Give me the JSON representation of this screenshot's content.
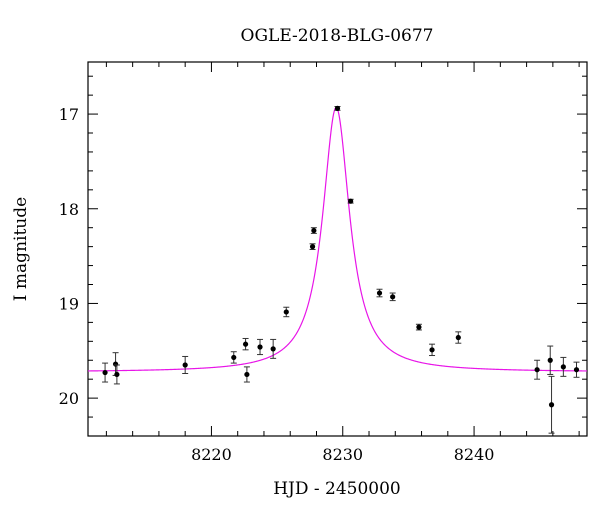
{
  "chart_data": {
    "type": "scatter",
    "title": "OGLE-2018-BLG-0677",
    "xlabel": "HJD - 2450000",
    "ylabel": "I magnitude",
    "xlim": [
      8210.6,
      8248.6
    ],
    "ylim": [
      20.4,
      16.45
    ],
    "y_inverted": true,
    "x_ticks": [
      8220,
      8230,
      8240
    ],
    "x_tick_labels": [
      "8220",
      "8230",
      "8240"
    ],
    "y_ticks": [
      17,
      18,
      19,
      20
    ],
    "y_tick_labels": [
      "17",
      "18",
      "19",
      "20"
    ],
    "grid": false,
    "series": [
      {
        "kind": "points",
        "color": "#000000",
        "x": [
          8211.9,
          8212.7,
          8212.8,
          8218.0,
          8221.7,
          8222.6,
          8222.7,
          8223.7,
          8224.7,
          8225.7,
          8227.7,
          8227.8,
          8229.6,
          8230.6,
          8232.8,
          8233.8,
          8235.8,
          8236.8,
          8238.8,
          8244.8,
          8245.8,
          8245.9,
          8246.8,
          8247.8
        ],
        "y": [
          19.73,
          19.64,
          19.75,
          19.65,
          19.57,
          19.43,
          19.75,
          19.46,
          19.48,
          19.09,
          18.4,
          18.23,
          16.94,
          17.92,
          18.89,
          18.93,
          19.25,
          19.49,
          19.36,
          19.7,
          19.6,
          20.07,
          19.67,
          19.7
        ],
        "yerr": [
          0.1,
          0.12,
          0.1,
          0.09,
          0.06,
          0.06,
          0.08,
          0.08,
          0.1,
          0.05,
          0.03,
          0.03,
          0.02,
          0.02,
          0.04,
          0.04,
          0.03,
          0.06,
          0.06,
          0.1,
          0.15,
          0.3,
          0.1,
          0.08
        ]
      },
      {
        "kind": "model",
        "color": "#e815e8",
        "peak_time": 8229.5,
        "baseline_mag": 19.725,
        "peak_mag": 16.93,
        "curve_samples": {
          "x": [
            8210.6,
            8212.6,
            8214.6,
            8216.6,
            8218.6,
            8220.6,
            8222.6,
            8223.6,
            8224.6,
            8225.6,
            8226.5,
            8227.5,
            8228.0,
            8228.5,
            8229.0,
            8229.5,
            8230.0,
            8230.5,
            8231.0,
            8231.5,
            8232.5,
            8233.4,
            8234.4,
            8235.4,
            8236.4,
            8238.4,
            8240.4,
            8242.4,
            8244.4,
            8246.4,
            8248.6
          ],
          "y": [
            19.69,
            19.68,
            19.67,
            19.65,
            19.63,
            19.59,
            19.5,
            19.42,
            19.31,
            19.13,
            18.88,
            18.4,
            18.0,
            17.48,
            17.07,
            16.93,
            17.07,
            17.48,
            18.0,
            18.4,
            18.88,
            19.13,
            19.31,
            19.42,
            19.5,
            19.59,
            19.63,
            19.65,
            19.67,
            19.68,
            19.69
          ]
        }
      }
    ]
  }
}
